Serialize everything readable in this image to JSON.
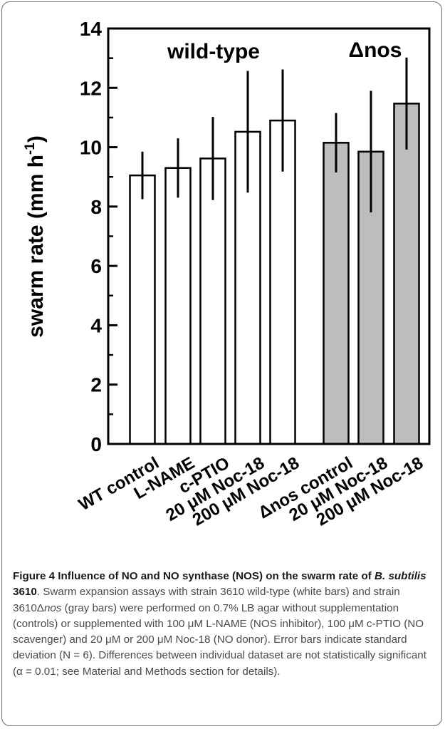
{
  "chart_data": {
    "type": "bar",
    "title": "",
    "xlabel": "",
    "ylabel": "swarm rate (mm h",
    "ylabel_sup": "-1",
    "ylabel_close": ")",
    "ylim": [
      0,
      14
    ],
    "yticks": [
      "0",
      "2",
      "4",
      "6",
      "8",
      "10",
      "12",
      "14"
    ],
    "categories": [
      "WT control",
      "L-NAME",
      "c-PTIO",
      "20 μM Noc-18",
      "200 μM Noc-18",
      "Δnos control",
      "20 μM Noc-18",
      "200 μM Noc-18"
    ],
    "values": [
      9.05,
      9.3,
      9.62,
      10.52,
      10.9,
      10.15,
      9.85,
      11.47
    ],
    "error": [
      0.8,
      1.0,
      1.4,
      2.05,
      1.72,
      1.0,
      2.05,
      1.55
    ],
    "colors": [
      "#ffffff",
      "#ffffff",
      "#ffffff",
      "#ffffff",
      "#ffffff",
      "#bdbdbd",
      "#bdbdbd",
      "#bdbdbd"
    ],
    "annotations": [
      "wild-type",
      "Δnos"
    ]
  },
  "caption": {
    "lead_part1": "Figure 4 Influence of NO and NO synthase (NOS) on the swarm rate of ",
    "lead_species": "B. subtilis",
    "lead_part2": " 3610",
    "body_part1": ". Swarm expansion assays with strain 3610 wild-type (white bars) and strain 3610Δ",
    "body_italic": "nos",
    "body_part2": " (gray bars) were performed on 0.7% LB agar without supplementation (controls) or supplemented with 100 μM L-NAME (NOS inhibitor), 100 μM c-PTIO (NO scavenger) and 20 μM or 200 μM Noc-18 (NO donor). Error bars indicate standard deviation (N = 6). Differences between individual dataset are not statistically significant (α = 0.01; see Material and Methods section for details)."
  }
}
